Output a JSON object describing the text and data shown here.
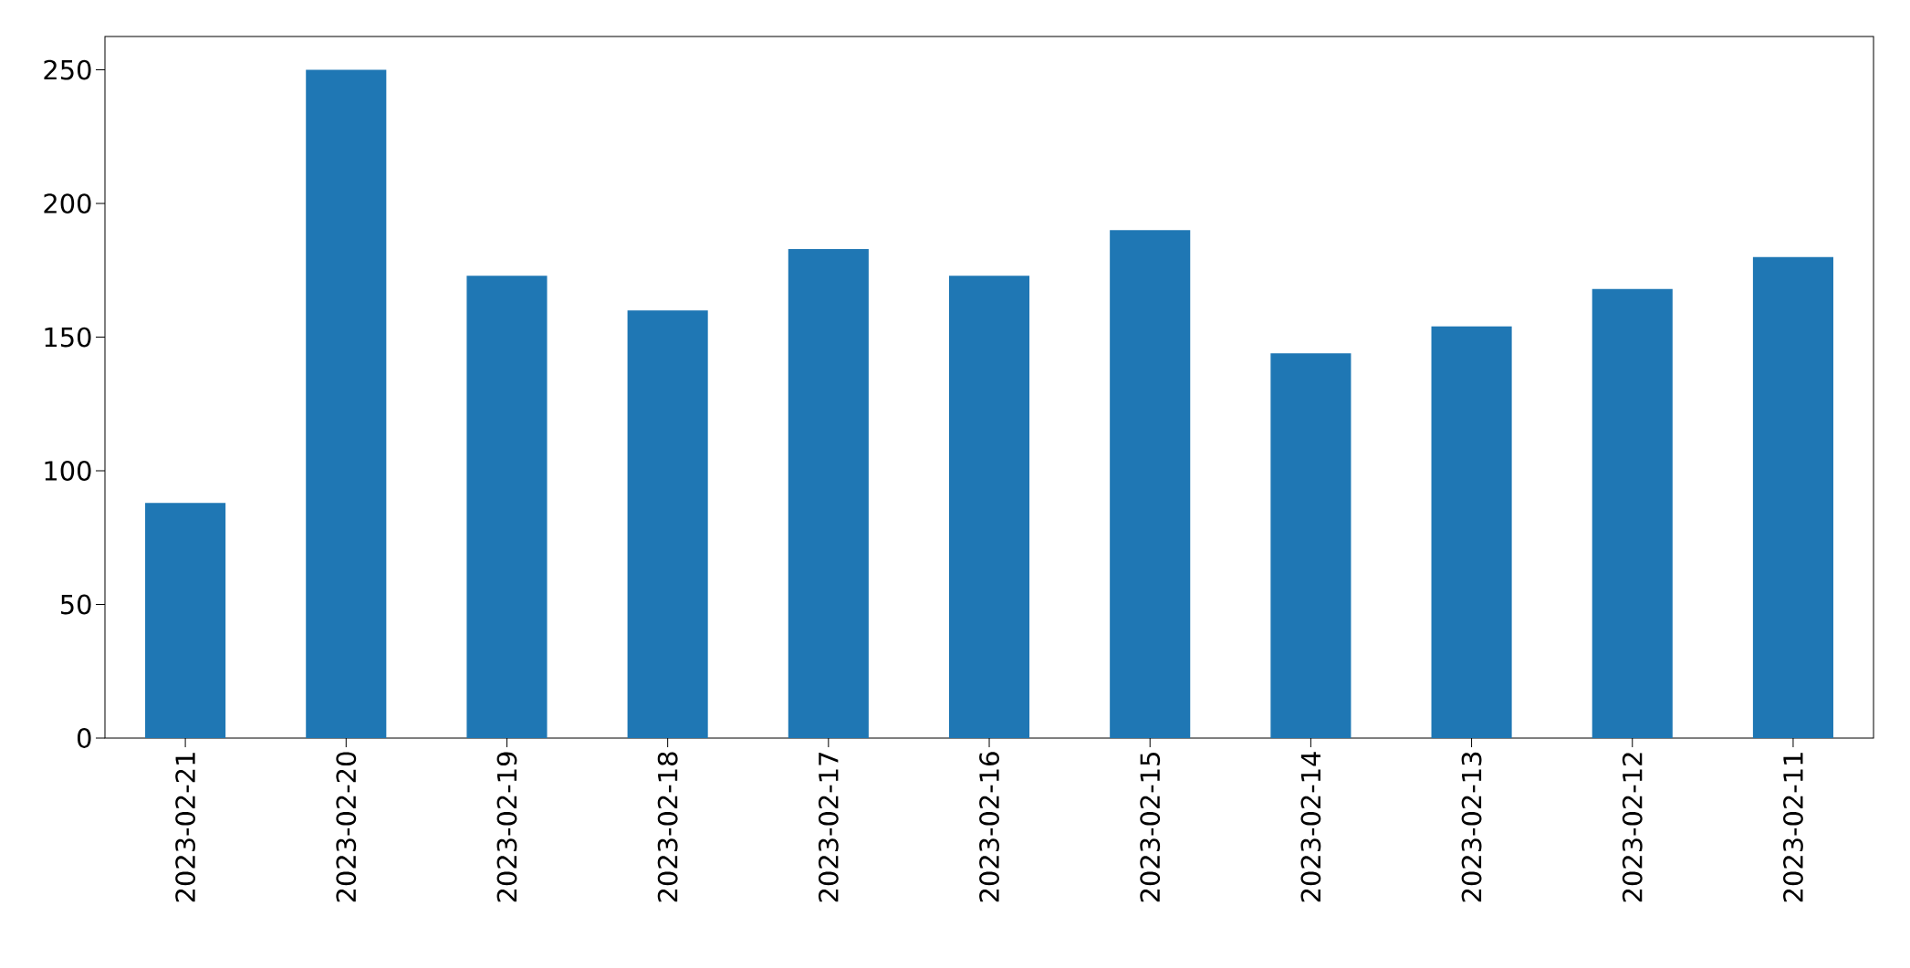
{
  "chart_data": {
    "type": "bar",
    "categories": [
      "2023-02-21",
      "2023-02-20",
      "2023-02-19",
      "2023-02-18",
      "2023-02-17",
      "2023-02-16",
      "2023-02-15",
      "2023-02-14",
      "2023-02-13",
      "2023-02-12",
      "2023-02-11"
    ],
    "values": [
      88,
      250,
      173,
      160,
      183,
      173,
      190,
      144,
      154,
      168,
      180
    ],
    "color": "#1f77b4",
    "ylim": [
      0,
      262.5
    ],
    "yticks": [
      0,
      50,
      100,
      150,
      200,
      250
    ]
  }
}
